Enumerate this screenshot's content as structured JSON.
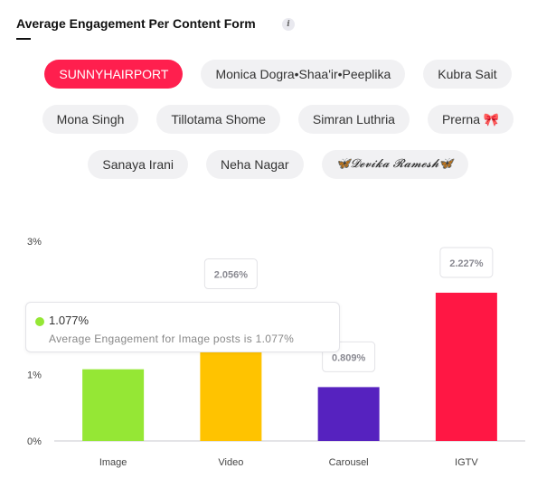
{
  "header": {
    "title": "Average Engagement Per Content Form",
    "info_icon": "i"
  },
  "chips": [
    [
      "SUNNYHAIRPORT",
      "Monica Dogra•Shaa'ir•Peeplika",
      "Kubra Sait"
    ],
    [
      "Mona Singh",
      "Tillotama Shome",
      "Simran Luthria",
      "Prerna 🎀"
    ],
    [
      "Sanaya Irani",
      "Neha Nagar",
      "🦋𝓓𝓮𝓿𝓲𝓴𝓪 𝓡𝓪𝓶𝓮𝓼𝓱🦋"
    ]
  ],
  "active_chip": "SUNNYHAIRPORT",
  "colors": {
    "accent": "#ff1f4e",
    "chip_bg": "#f1f1f3"
  },
  "tooltip": {
    "value": "1.077%",
    "description": "Average Engagement for Image posts is 1.077%",
    "color": "#95e735"
  },
  "chart_data": {
    "type": "bar",
    "categories": [
      "Image",
      "Video",
      "Carousel",
      "IGTV"
    ],
    "values": [
      1.077,
      2.056,
      0.809,
      2.227
    ],
    "value_labels": [
      "",
      "2.056%",
      "0.809%",
      "2.227%"
    ],
    "colors": [
      "#95e735",
      "#ffc300",
      "#5622bf",
      "#ff1744"
    ],
    "yticks": [
      "0%",
      "1%",
      "3%"
    ],
    "ylim": [
      0,
      3
    ],
    "grid": false
  }
}
